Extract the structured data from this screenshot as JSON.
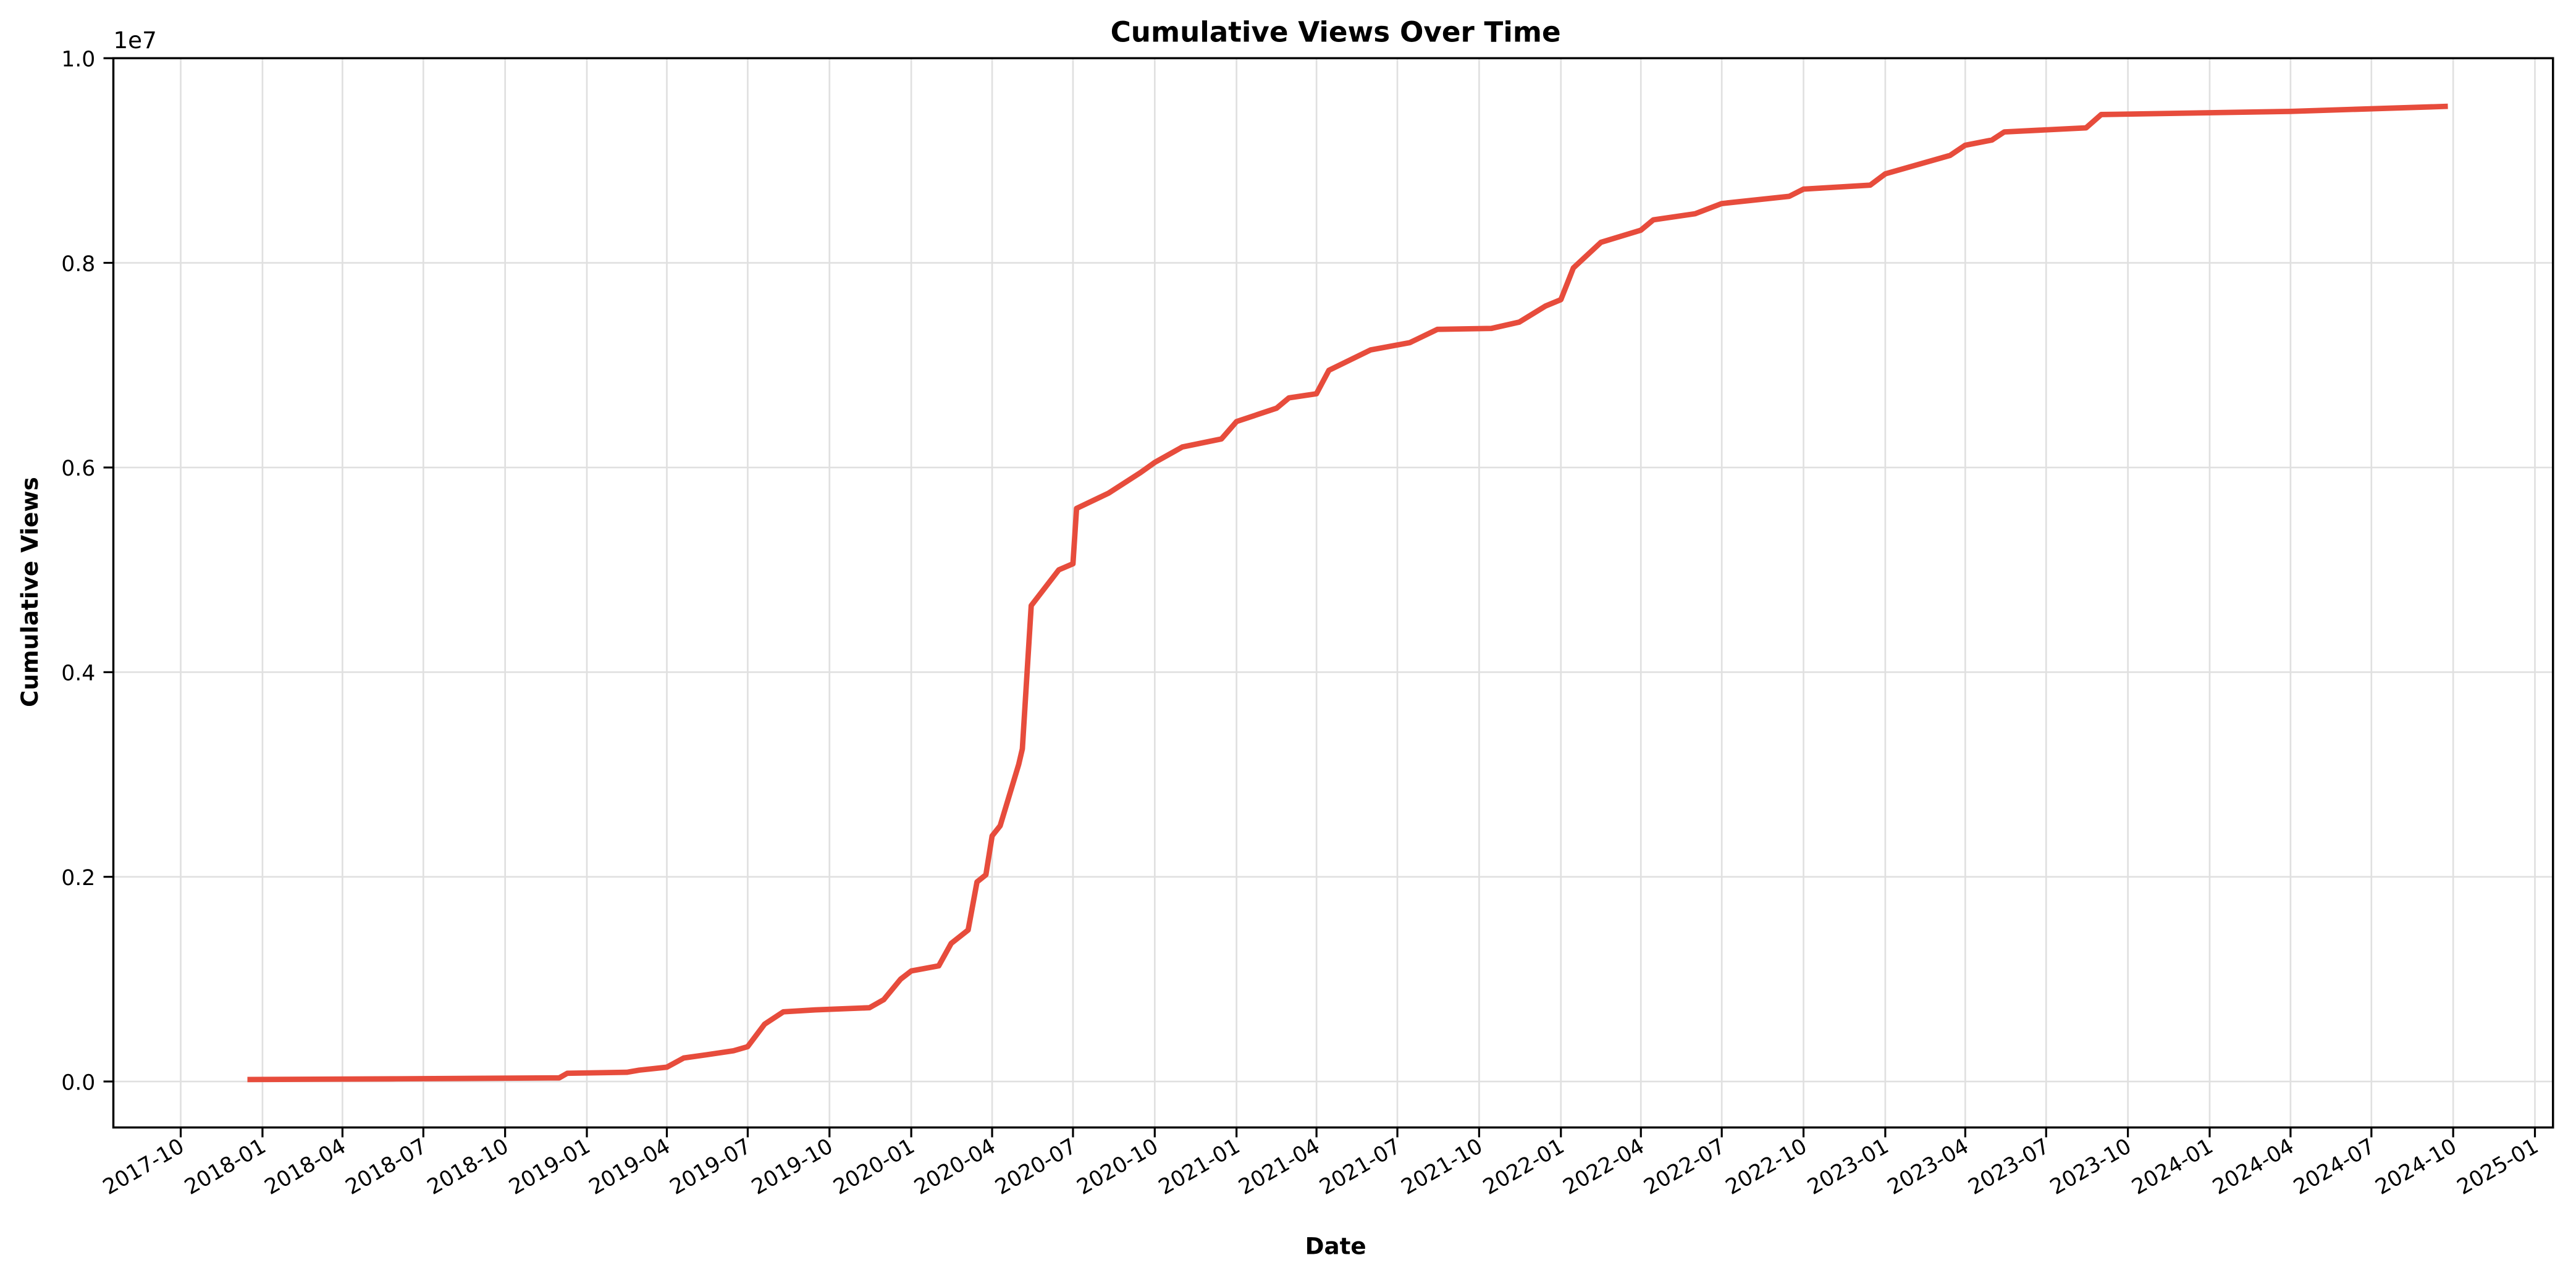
{
  "chart_data": {
    "type": "line",
    "title": "Cumulative Views Over Time",
    "xlabel": "Date",
    "ylabel": "Cumulative Views",
    "y_offset_label": "1e7",
    "ylim": [
      -450000,
      10000000
    ],
    "xlim": [
      "2017-09-01",
      "2025-01-15"
    ],
    "grid": true,
    "legend": null,
    "line_color": "#e74c3c",
    "x_ticks": [
      "2017-10",
      "2018-01",
      "2018-04",
      "2018-07",
      "2018-10",
      "2019-01",
      "2019-04",
      "2019-07",
      "2019-10",
      "2020-01",
      "2020-04",
      "2020-07",
      "2020-10",
      "2021-01",
      "2021-04",
      "2021-07",
      "2021-10",
      "2022-01",
      "2022-04",
      "2022-07",
      "2022-10",
      "2023-01",
      "2023-04",
      "2023-07",
      "2023-10",
      "2024-01",
      "2024-04",
      "2024-07",
      "2024-10",
      "2025-01"
    ],
    "y_ticks": [
      "0.0",
      "0.2",
      "0.4",
      "0.6",
      "0.8",
      "1.0"
    ],
    "y_tick_values": [
      0,
      2000000,
      4000000,
      6000000,
      8000000,
      10000000
    ],
    "series": [
      {
        "name": "Cumulative Views",
        "x": [
          "2017-12-15",
          "2018-06-01",
          "2018-12-01",
          "2018-12-10",
          "2019-02-15",
          "2019-03-01",
          "2019-04-01",
          "2019-04-20",
          "2019-05-15",
          "2019-06-15",
          "2019-07-01",
          "2019-07-20",
          "2019-08-10",
          "2019-09-15",
          "2019-11-15",
          "2019-12-01",
          "2019-12-20",
          "2020-01-01",
          "2020-02-01",
          "2020-02-15",
          "2020-03-05",
          "2020-03-15",
          "2020-03-25",
          "2020-04-01",
          "2020-04-10",
          "2020-05-01",
          "2020-05-05",
          "2020-05-15",
          "2020-06-15",
          "2020-07-01",
          "2020-07-05",
          "2020-08-10",
          "2020-09-15",
          "2020-10-01",
          "2020-11-01",
          "2020-12-15",
          "2021-01-01",
          "2021-02-15",
          "2021-03-01",
          "2021-04-01",
          "2021-04-15",
          "2021-06-01",
          "2021-07-15",
          "2021-08-15",
          "2021-10-15",
          "2021-11-15",
          "2021-12-15",
          "2022-01-01",
          "2022-01-15",
          "2022-02-15",
          "2022-04-01",
          "2022-04-15",
          "2022-06-01",
          "2022-07-01",
          "2022-09-15",
          "2022-10-01",
          "2022-12-15",
          "2023-01-01",
          "2023-03-15",
          "2023-04-01",
          "2023-05-01",
          "2023-05-15",
          "2023-08-15",
          "2023-09-01",
          "2024-04-01",
          "2024-09-25"
        ],
        "y": [
          20000,
          25000,
          35000,
          80000,
          90000,
          110000,
          140000,
          230000,
          260000,
          300000,
          340000,
          560000,
          680000,
          700000,
          720000,
          800000,
          1000000,
          1080000,
          1130000,
          1350000,
          1480000,
          1950000,
          2020000,
          2400000,
          2500000,
          3100000,
          3250000,
          4650000,
          5000000,
          5060000,
          5600000,
          5750000,
          5950000,
          6050000,
          6200000,
          6280000,
          6450000,
          6580000,
          6680000,
          6720000,
          6950000,
          7150000,
          7220000,
          7350000,
          7360000,
          7420000,
          7580000,
          7640000,
          7950000,
          8200000,
          8320000,
          8420000,
          8480000,
          8580000,
          8650000,
          8720000,
          8760000,
          8870000,
          9050000,
          9150000,
          9200000,
          9280000,
          9320000,
          9450000,
          9480000,
          9530000
        ]
      }
    ]
  }
}
